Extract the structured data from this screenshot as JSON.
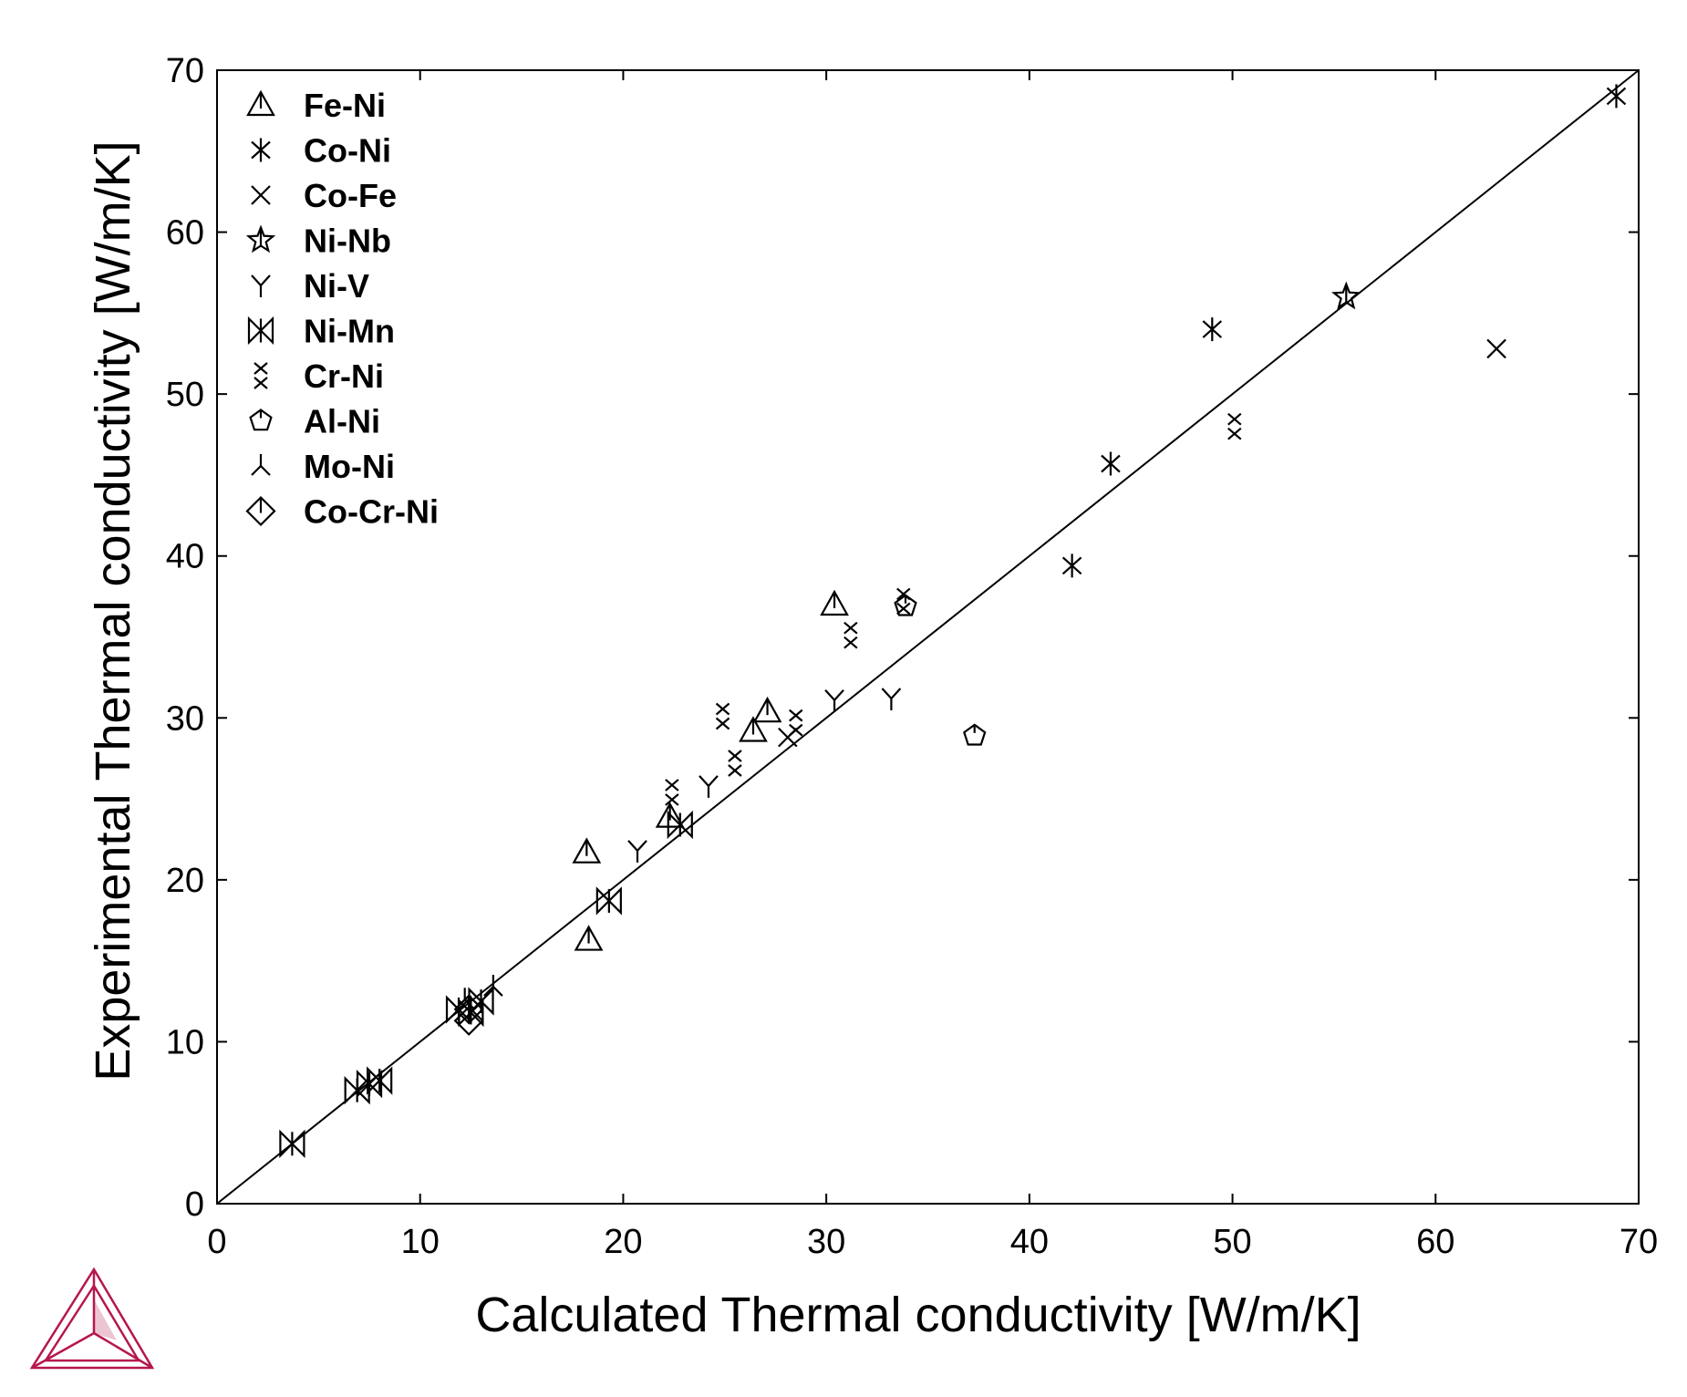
{
  "chart_data": {
    "type": "scatter",
    "xlabel": "Calculated Thermal conductivity [W/m/K]",
    "ylabel": "Experimental Thermal conductivity [W/m/K]",
    "xlim": [
      0,
      70
    ],
    "ylim": [
      0,
      70
    ],
    "xticks": [
      0,
      10,
      20,
      30,
      40,
      50,
      60,
      70
    ],
    "yticks": [
      0,
      10,
      20,
      30,
      40,
      50,
      60,
      70
    ],
    "reference_line": "y = x",
    "grid": false,
    "legend_position": "top-left",
    "logo": "thermo-calc-triangle",
    "logo_color": "#b5174f",
    "series": [
      {
        "name": "Fe-Ni",
        "marker": "triangle-bar",
        "points": [
          [
            18.2,
            21.7
          ],
          [
            18.3,
            16.3
          ],
          [
            22.3,
            23.9
          ],
          [
            26.4,
            29.2
          ],
          [
            27.1,
            30.4
          ],
          [
            30.4,
            37.0
          ]
        ]
      },
      {
        "name": "Co-Ni",
        "marker": "asterisk",
        "points": [
          [
            42.1,
            39.4
          ],
          [
            44.0,
            45.7
          ],
          [
            49.0,
            54.0
          ],
          [
            68.9,
            68.4
          ]
        ]
      },
      {
        "name": "Co-Fe",
        "marker": "x",
        "points": [
          [
            28.1,
            28.8
          ],
          [
            63.0,
            52.8
          ]
        ]
      },
      {
        "name": "Ni-Nb",
        "marker": "star",
        "points": [
          [
            55.6,
            56.0
          ]
        ]
      },
      {
        "name": "Ni-V",
        "marker": "y",
        "points": [
          [
            20.7,
            21.8
          ],
          [
            24.2,
            25.8
          ],
          [
            30.4,
            31.1
          ],
          [
            33.2,
            31.2
          ]
        ]
      },
      {
        "name": "Ni-Mn",
        "marker": "bowtie",
        "points": [
          [
            3.7,
            3.7
          ],
          [
            6.9,
            7.0
          ],
          [
            7.5,
            7.4
          ],
          [
            8.0,
            7.6
          ],
          [
            11.9,
            12.0
          ],
          [
            12.5,
            11.8
          ],
          [
            13.0,
            12.5
          ],
          [
            19.3,
            18.7
          ],
          [
            22.8,
            23.4
          ]
        ]
      },
      {
        "name": "Cr-Ni",
        "marker": "double-x",
        "points": [
          [
            24.9,
            30.1
          ],
          [
            25.5,
            27.2
          ],
          [
            22.4,
            25.4
          ],
          [
            28.5,
            29.7
          ],
          [
            31.2,
            35.1
          ],
          [
            50.1,
            48.0
          ],
          [
            33.8,
            37.2
          ]
        ]
      },
      {
        "name": "Al-Ni",
        "marker": "pentagon",
        "points": [
          [
            37.3,
            28.9
          ],
          [
            33.9,
            36.9
          ]
        ]
      },
      {
        "name": "Mo-Ni",
        "marker": "inverted-y",
        "points": [
          [
            13.6,
            13.4
          ],
          [
            12.2,
            12.6
          ]
        ]
      },
      {
        "name": "Co-Cr-Ni",
        "marker": "diamond-bar",
        "points": [
          [
            12.4,
            11.3
          ],
          [
            12.4,
            12.0
          ]
        ]
      }
    ]
  }
}
